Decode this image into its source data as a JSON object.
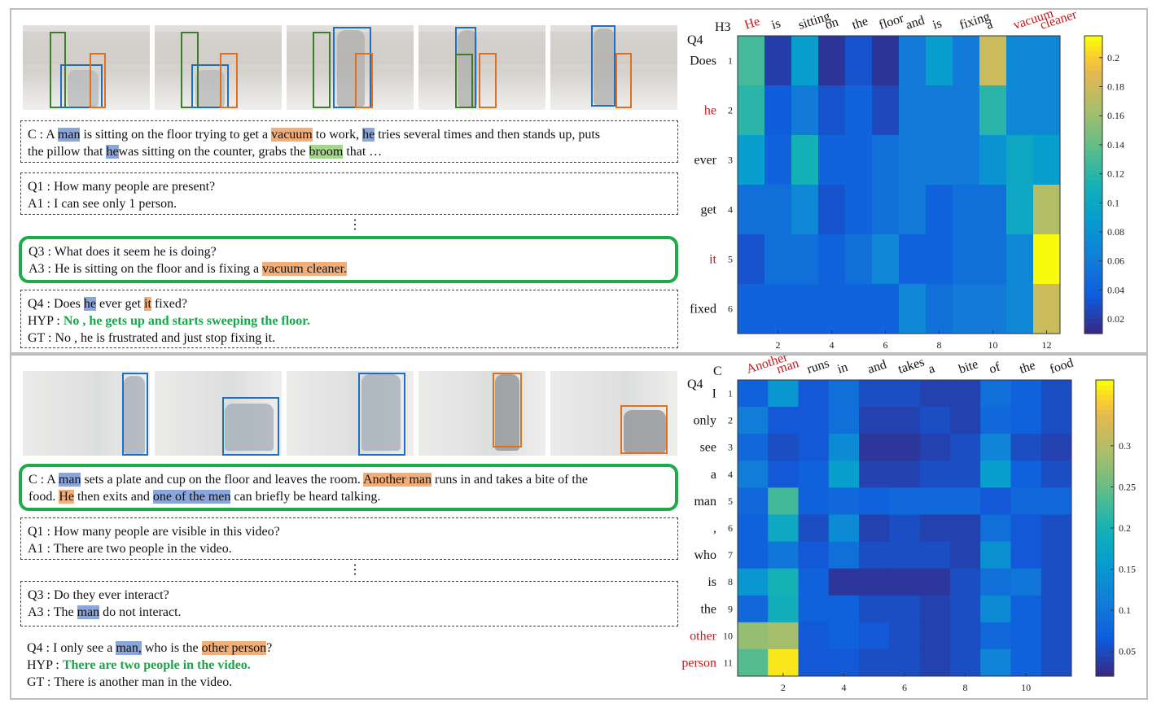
{
  "top": {
    "context": {
      "prefix": "C : A ",
      "t1": "man",
      "s1": " is sitting on the floor trying to get a ",
      "t2": "vacuum",
      "s2": " to work, ",
      "t3": "he",
      "s3": " tries several times and then stands up, puts",
      "line2_a": "the pillow that ",
      "t4": "he",
      "s4": "was sitting on the counter, grabs the ",
      "t5": "broom",
      "s5": " that …"
    },
    "q1": "Q1 : How many people are present?",
    "a1": "A1 : I can see only 1 person.",
    "dots": "⋮",
    "q3": "Q3 : What does it seem he is doing?",
    "a3_prefix": "A3 : He is sitting on the floor and is fixing a ",
    "a3_hl": "vacuum cleaner.",
    "q4_a": "Q4 : Does ",
    "q4_he": "he",
    "q4_b": " ever get ",
    "q4_it": "it",
    "q4_c": " fixed?",
    "hyp_label": "HYP : ",
    "hyp": "No , he gets up and starts sweeping the floor.",
    "gt": "GT : No , he is frustrated and just stop fixing it."
  },
  "bottom": {
    "context": {
      "prefix": "C : A ",
      "t1": "man",
      "s1": " sets a plate and cup on the floor and leaves the room. ",
      "t2": "Another man",
      "s2": " runs in and takes a bite of the",
      "line2_a": "food. ",
      "t3": "He",
      "s3": " then exits and ",
      "t4": "one of the men",
      "s4": " can briefly be heard talking."
    },
    "q1": "Q1 : How many people are visible in this video?",
    "a1": "A1 : There are two people in the video.",
    "dots": "⋮",
    "q3": "Q3 : Do they ever interact?",
    "a3_a": "A3 : The ",
    "a3_hl": "man",
    "a3_b": " do not interact.",
    "q4_a": "Q4 : I only see a ",
    "q4_man": "man,",
    "q4_b": " who is the ",
    "q4_person": "other person",
    "q4_c": "?",
    "hyp_label": "HYP : ",
    "hyp": "There are two people in the video.",
    "gt": "GT : There is another man in the video."
  },
  "chart_data": [
    {
      "type": "heatmap",
      "corner_x": "H3",
      "corner_y": "Q4",
      "x_labels": [
        "He",
        "is",
        "sitting",
        "on",
        "the",
        "floor",
        "and",
        "is",
        "fixing",
        "a",
        "vacuum",
        "cleaner"
      ],
      "x_red": [
        0,
        10,
        11
      ],
      "y_labels": [
        "Does",
        "he",
        "ever",
        "get",
        "it",
        "fixed"
      ],
      "y_red": [
        1,
        4
      ],
      "x_ticks": [
        "2",
        "4",
        "6",
        "8",
        "10",
        "12"
      ],
      "y_ticks": [
        "1",
        "2",
        "3",
        "4",
        "5",
        "6"
      ],
      "colorbar_ticks": [
        "0.02",
        "0.04",
        "0.06",
        "0.08",
        "0.1",
        "0.12",
        "0.14",
        "0.16",
        "0.18",
        "0.2"
      ],
      "vmin": 0.01,
      "vmax": 0.215,
      "values": [
        [
          0.13,
          0.02,
          0.09,
          0.015,
          0.03,
          0.015,
          0.06,
          0.09,
          0.06,
          0.18,
          0.07,
          0.07
        ],
        [
          0.12,
          0.035,
          0.06,
          0.03,
          0.04,
          0.025,
          0.06,
          0.06,
          0.06,
          0.12,
          0.07,
          0.07
        ],
        [
          0.09,
          0.04,
          0.11,
          0.04,
          0.04,
          0.05,
          0.06,
          0.06,
          0.06,
          0.08,
          0.1,
          0.09
        ],
        [
          0.05,
          0.05,
          0.07,
          0.03,
          0.04,
          0.05,
          0.06,
          0.04,
          0.05,
          0.05,
          0.1,
          0.17
        ],
        [
          0.03,
          0.05,
          0.05,
          0.04,
          0.05,
          0.07,
          0.04,
          0.04,
          0.05,
          0.05,
          0.07,
          0.215
        ],
        [
          0.04,
          0.04,
          0.04,
          0.04,
          0.04,
          0.04,
          0.07,
          0.05,
          0.06,
          0.06,
          0.07,
          0.18
        ]
      ]
    },
    {
      "type": "heatmap",
      "corner_x": "C",
      "corner_y": "Q4",
      "x_labels": [
        "Another",
        "man",
        "runs",
        "in",
        "and",
        "takes",
        "a",
        "bite",
        "of",
        "the",
        "food"
      ],
      "x_red": [
        0,
        1
      ],
      "y_labels": [
        "I",
        "only",
        "see",
        "a",
        "man",
        ",",
        "who",
        "is",
        "the",
        "other",
        "person"
      ],
      "y_red": [
        9,
        10
      ],
      "x_ticks": [
        "2",
        "4",
        "6",
        "8",
        "10"
      ],
      "y_ticks": [
        "1",
        "2",
        "3",
        "4",
        "5",
        "6",
        "7",
        "8",
        "9",
        "10",
        "11"
      ],
      "colorbar_ticks": [
        "0.05",
        "0.1",
        "0.15",
        "0.2",
        "0.25",
        "0.3"
      ],
      "vmin": 0.02,
      "vmax": 0.38,
      "values": [
        [
          0.07,
          0.15,
          0.06,
          0.09,
          0.05,
          0.05,
          0.04,
          0.04,
          0.09,
          0.07,
          0.05
        ],
        [
          0.11,
          0.06,
          0.06,
          0.09,
          0.04,
          0.04,
          0.05,
          0.04,
          0.08,
          0.07,
          0.05
        ],
        [
          0.08,
          0.05,
          0.06,
          0.13,
          0.03,
          0.03,
          0.04,
          0.05,
          0.12,
          0.05,
          0.04
        ],
        [
          0.11,
          0.06,
          0.07,
          0.16,
          0.04,
          0.04,
          0.05,
          0.05,
          0.16,
          0.07,
          0.05
        ],
        [
          0.08,
          0.23,
          0.07,
          0.08,
          0.07,
          0.08,
          0.08,
          0.08,
          0.06,
          0.08,
          0.08
        ],
        [
          0.07,
          0.18,
          0.05,
          0.13,
          0.04,
          0.05,
          0.04,
          0.04,
          0.09,
          0.06,
          0.05
        ],
        [
          0.07,
          0.1,
          0.06,
          0.09,
          0.05,
          0.05,
          0.05,
          0.04,
          0.14,
          0.06,
          0.05
        ],
        [
          0.15,
          0.2,
          0.07,
          0.03,
          0.03,
          0.03,
          0.03,
          0.05,
          0.09,
          0.1,
          0.05
        ],
        [
          0.08,
          0.19,
          0.07,
          0.07,
          0.05,
          0.05,
          0.04,
          0.05,
          0.13,
          0.07,
          0.05
        ],
        [
          0.28,
          0.29,
          0.06,
          0.07,
          0.06,
          0.05,
          0.04,
          0.05,
          0.08,
          0.07,
          0.05
        ],
        [
          0.24,
          0.37,
          0.06,
          0.06,
          0.05,
          0.05,
          0.04,
          0.05,
          0.12,
          0.07,
          0.05
        ]
      ]
    }
  ]
}
